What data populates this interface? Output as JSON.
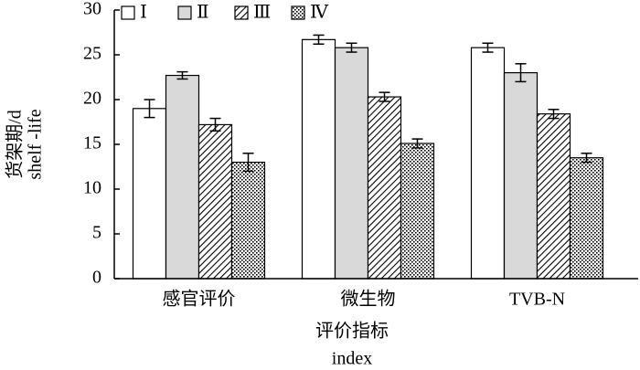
{
  "chart_data": {
    "type": "bar",
    "categories": [
      "感官评价",
      "微生物",
      "TVB-N"
    ],
    "series": [
      {
        "name": "Ⅰ",
        "color": "#ffffff",
        "pattern": "solid",
        "values": [
          19.0,
          26.7,
          25.8
        ],
        "errors": [
          1.0,
          0.5,
          0.5
        ]
      },
      {
        "name": "Ⅱ",
        "color": "#d9d9d9",
        "pattern": "solid",
        "values": [
          22.7,
          25.8,
          23.0
        ],
        "errors": [
          0.4,
          0.5,
          1.0
        ]
      },
      {
        "name": "Ⅲ",
        "color": "#000000",
        "pattern": "hatch",
        "values": [
          17.2,
          20.3,
          18.4
        ],
        "errors": [
          0.7,
          0.5,
          0.5
        ]
      },
      {
        "name": "Ⅳ",
        "color": "#000000",
        "pattern": "dots",
        "values": [
          13.0,
          15.1,
          13.5
        ],
        "errors": [
          1.0,
          0.5,
          0.5
        ]
      }
    ],
    "ylim": [
      0,
      30
    ],
    "yticks": [
      0,
      5,
      10,
      15,
      20,
      25,
      30
    ],
    "ylabel": [
      "货架期/d",
      "shelf -life"
    ],
    "xlabel": [
      "评价指标",
      "index"
    ]
  }
}
